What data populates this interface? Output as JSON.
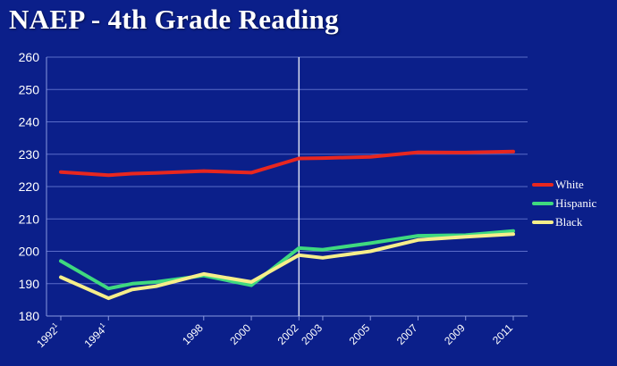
{
  "chart_data": {
    "type": "line",
    "title": "NAEP - 4th Grade Reading",
    "x_positions": [
      1992,
      1994,
      1996,
      1998,
      2000,
      2002,
      2003,
      2005,
      2007,
      2009,
      2011
    ],
    "x_tick_labels": [
      {
        "x": 1992,
        "label": "1992",
        "sup": "1"
      },
      {
        "x": 1994,
        "label": "1994",
        "sup": "1"
      },
      {
        "x": 1998,
        "label": "1998",
        "sup": ""
      },
      {
        "x": 2000,
        "label": "2000",
        "sup": ""
      },
      {
        "x": 2002,
        "label": "2002",
        "sup": ""
      },
      {
        "x": 2003,
        "label": "2003",
        "sup": ""
      },
      {
        "x": 2005,
        "label": "2005",
        "sup": ""
      },
      {
        "x": 2007,
        "label": "2007",
        "sup": ""
      },
      {
        "x": 2009,
        "label": "2009",
        "sup": ""
      },
      {
        "x": 2011,
        "label": "2011",
        "sup": ""
      }
    ],
    "ylim": [
      180,
      260
    ],
    "yticks": [
      180,
      190,
      200,
      210,
      220,
      230,
      240,
      250,
      260
    ],
    "grid": true,
    "reference_line_x": 2002,
    "legend_position": "right",
    "series": [
      {
        "name": "White",
        "color": "#e8271f",
        "points": [
          [
            1992,
            224.5
          ],
          [
            1994,
            223.5
          ],
          [
            1995,
            224
          ],
          [
            1996,
            224.2
          ],
          [
            1998,
            224.8
          ],
          [
            2000,
            224.3
          ],
          [
            2002,
            228.7
          ],
          [
            2003,
            228.8
          ],
          [
            2005,
            229.2
          ],
          [
            2007,
            230.6
          ],
          [
            2009,
            230.5
          ],
          [
            2011,
            230.8
          ]
        ]
      },
      {
        "name": "Hispanic",
        "color": "#3fd97f",
        "points": [
          [
            1992,
            197
          ],
          [
            1994,
            188.5
          ],
          [
            1995,
            190
          ],
          [
            1996,
            190.5
          ],
          [
            1998,
            192.5
          ],
          [
            2000,
            189.5
          ],
          [
            2002,
            201
          ],
          [
            2003,
            200.5
          ],
          [
            2005,
            202.5
          ],
          [
            2007,
            204.8
          ],
          [
            2009,
            205
          ],
          [
            2011,
            206.3
          ]
        ]
      },
      {
        "name": "Black",
        "color": "#f6ee8a",
        "points": [
          [
            1992,
            192
          ],
          [
            1994,
            185.5
          ],
          [
            1995,
            188.2
          ],
          [
            1996,
            189.2
          ],
          [
            1998,
            193
          ],
          [
            2000,
            190.5
          ],
          [
            2002,
            198.8
          ],
          [
            2003,
            198
          ],
          [
            2005,
            200
          ],
          [
            2007,
            203.5
          ],
          [
            2009,
            204.5
          ],
          [
            2011,
            205.3
          ]
        ]
      }
    ]
  }
}
